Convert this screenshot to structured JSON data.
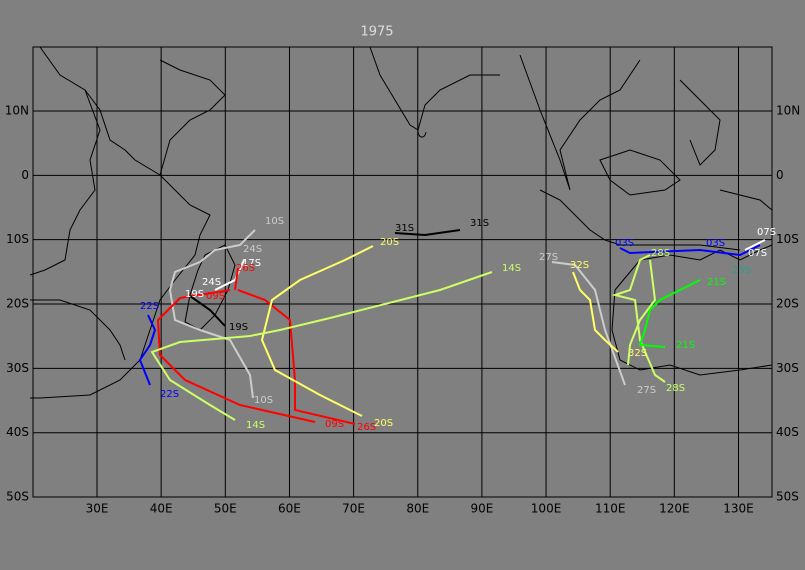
{
  "title": "1975",
  "lat_labels": [
    "10N",
    "0",
    "10S",
    "20S",
    "30S",
    "40S",
    "50S"
  ],
  "lon_labels": [
    "30E",
    "40E",
    "50E",
    "60E",
    "70E",
    "80E",
    "90E",
    "100E",
    "110E",
    "120E",
    "130E"
  ],
  "storm_labels": [
    "10S",
    "24S",
    "17S",
    "26S",
    "19S",
    "09S",
    "24S",
    "19S",
    "22S",
    "22S",
    "10S",
    "14S",
    "09S",
    "26S",
    "20S",
    "31S",
    "31S",
    "20S",
    "14S",
    "27S",
    "32S",
    "32S",
    "27S",
    "28S",
    "03S",
    "03S",
    "28S",
    "21S",
    "21S",
    "07S",
    "07S",
    "25S"
  ]
}
